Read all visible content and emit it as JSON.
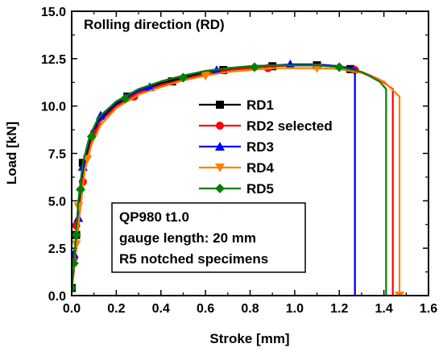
{
  "chart_data": {
    "type": "line",
    "title": "Rolling direction (RD)",
    "xlabel": "Stroke [mm]",
    "ylabel": "Load [kN]",
    "xlim": [
      0.0,
      1.6
    ],
    "ylim": [
      0.0,
      15.0
    ],
    "x_ticks": [
      "0.0",
      "0.2",
      "0.4",
      "0.6",
      "0.8",
      "1.0",
      "1.2",
      "1.4",
      "1.6"
    ],
    "y_ticks": [
      "0.0",
      "2.5",
      "5.0",
      "7.5",
      "10.0",
      "12.5",
      "15.0"
    ],
    "grid": false,
    "legend_position": "center-right",
    "annotation": [
      "QP980 t1.0",
      "gauge length: 20 mm",
      "R5 notched specimens"
    ],
    "series": [
      {
        "name": "RD1",
        "color": "#000000",
        "marker": "square",
        "points": [
          [
            0.0,
            0.3
          ],
          [
            0.01,
            1.5
          ],
          [
            0.02,
            3.0
          ],
          [
            0.03,
            4.6
          ],
          [
            0.05,
            6.6
          ],
          [
            0.08,
            8.1
          ],
          [
            0.12,
            9.2
          ],
          [
            0.2,
            10.1
          ],
          [
            0.3,
            10.8
          ],
          [
            0.4,
            11.2
          ],
          [
            0.5,
            11.5
          ],
          [
            0.6,
            11.8
          ],
          [
            0.7,
            11.95
          ],
          [
            0.8,
            12.05
          ],
          [
            0.9,
            12.1
          ],
          [
            1.0,
            12.15
          ],
          [
            1.1,
            12.15
          ],
          [
            1.2,
            12.1
          ],
          [
            1.27,
            11.9
          ],
          [
            1.27,
            0.0
          ]
        ],
        "markers": [
          [
            0.0,
            0.4
          ],
          [
            0.02,
            3.2
          ],
          [
            0.05,
            7.0
          ],
          [
            0.25,
            10.5
          ],
          [
            0.45,
            11.3
          ],
          [
            0.68,
            11.9
          ],
          [
            0.9,
            12.1
          ],
          [
            1.1,
            12.15
          ],
          [
            1.25,
            11.95
          ]
        ]
      },
      {
        "name": "RD2 selected",
        "color": "#ff0000",
        "marker": "circle",
        "points": [
          [
            0.0,
            0.3
          ],
          [
            0.01,
            1.3
          ],
          [
            0.02,
            2.5
          ],
          [
            0.04,
            4.8
          ],
          [
            0.06,
            6.8
          ],
          [
            0.09,
            8.2
          ],
          [
            0.13,
            9.2
          ],
          [
            0.2,
            10.0
          ],
          [
            0.3,
            10.7
          ],
          [
            0.4,
            11.1
          ],
          [
            0.5,
            11.4
          ],
          [
            0.6,
            11.7
          ],
          [
            0.7,
            11.9
          ],
          [
            0.8,
            12.0
          ],
          [
            0.9,
            12.1
          ],
          [
            1.0,
            12.15
          ],
          [
            1.1,
            12.15
          ],
          [
            1.2,
            12.05
          ],
          [
            1.3,
            11.8
          ],
          [
            1.38,
            11.4
          ],
          [
            1.44,
            10.9
          ],
          [
            1.44,
            0.0
          ]
        ],
        "markers": [
          [
            0.01,
            2.0
          ],
          [
            0.02,
            3.7
          ],
          [
            0.05,
            6.0
          ],
          [
            0.1,
            8.6
          ],
          [
            0.28,
            10.5
          ],
          [
            0.88,
            12.0
          ],
          [
            1.27,
            11.9
          ]
        ]
      },
      {
        "name": "RD3",
        "color": "#0000ff",
        "marker": "triangle-up",
        "points": [
          [
            0.0,
            0.3
          ],
          [
            0.01,
            1.6
          ],
          [
            0.02,
            3.2
          ],
          [
            0.03,
            4.9
          ],
          [
            0.05,
            6.9
          ],
          [
            0.08,
            8.3
          ],
          [
            0.12,
            9.3
          ],
          [
            0.2,
            10.2
          ],
          [
            0.3,
            10.8
          ],
          [
            0.4,
            11.3
          ],
          [
            0.5,
            11.6
          ],
          [
            0.6,
            11.85
          ],
          [
            0.7,
            12.0
          ],
          [
            0.8,
            12.1
          ],
          [
            0.9,
            12.15
          ],
          [
            1.0,
            12.2
          ],
          [
            1.1,
            12.2
          ],
          [
            1.2,
            12.1
          ],
          [
            1.27,
            11.95
          ],
          [
            1.27,
            0.0
          ]
        ],
        "markers": [
          [
            0.01,
            2.2
          ],
          [
            0.03,
            4.1
          ],
          [
            0.05,
            6.8
          ],
          [
            0.13,
            9.5
          ],
          [
            0.35,
            11.0
          ],
          [
            0.65,
            11.9
          ],
          [
            0.98,
            12.2
          ]
        ]
      },
      {
        "name": "RD4",
        "color": "#ff8000",
        "marker": "triangle-down",
        "points": [
          [
            0.0,
            0.3
          ],
          [
            0.01,
            1.4
          ],
          [
            0.02,
            2.8
          ],
          [
            0.04,
            4.7
          ],
          [
            0.06,
            6.7
          ],
          [
            0.09,
            8.0
          ],
          [
            0.13,
            9.0
          ],
          [
            0.2,
            9.9
          ],
          [
            0.3,
            10.6
          ],
          [
            0.4,
            11.0
          ],
          [
            0.5,
            11.35
          ],
          [
            0.6,
            11.6
          ],
          [
            0.7,
            11.8
          ],
          [
            0.8,
            11.9
          ],
          [
            0.9,
            12.0
          ],
          [
            1.0,
            12.0
          ],
          [
            1.1,
            12.0
          ],
          [
            1.2,
            11.95
          ],
          [
            1.3,
            11.75
          ],
          [
            1.4,
            11.3
          ],
          [
            1.47,
            10.5
          ],
          [
            1.47,
            0.0
          ],
          [
            1.5,
            0.0
          ]
        ],
        "markers": [
          [
            0.02,
            2.7
          ],
          [
            0.03,
            4.7
          ],
          [
            0.07,
            7.2
          ],
          [
            0.6,
            11.6
          ],
          [
            1.1,
            12.0
          ],
          [
            1.47,
            0.0
          ]
        ]
      },
      {
        "name": "RD5",
        "color": "#008000",
        "marker": "diamond",
        "points": [
          [
            0.0,
            0.3
          ],
          [
            0.01,
            1.6
          ],
          [
            0.02,
            3.3
          ],
          [
            0.03,
            5.0
          ],
          [
            0.05,
            7.0
          ],
          [
            0.08,
            8.4
          ],
          [
            0.12,
            9.4
          ],
          [
            0.2,
            10.25
          ],
          [
            0.3,
            10.9
          ],
          [
            0.4,
            11.3
          ],
          [
            0.5,
            11.6
          ],
          [
            0.6,
            11.85
          ],
          [
            0.7,
            12.0
          ],
          [
            0.8,
            12.1
          ],
          [
            0.9,
            12.15
          ],
          [
            1.0,
            12.15
          ],
          [
            1.1,
            12.15
          ],
          [
            1.2,
            12.05
          ],
          [
            1.3,
            11.8
          ],
          [
            1.38,
            11.3
          ],
          [
            1.41,
            10.9
          ],
          [
            1.41,
            0.0
          ]
        ],
        "markers": [
          [
            0.0,
            0.4
          ],
          [
            0.01,
            1.7
          ],
          [
            0.02,
            3.2
          ],
          [
            0.04,
            5.6
          ],
          [
            0.09,
            8.4
          ],
          [
            0.24,
            10.4
          ],
          [
            0.5,
            11.5
          ],
          [
            0.82,
            12.05
          ],
          [
            1.2,
            12.05
          ]
        ]
      }
    ]
  }
}
